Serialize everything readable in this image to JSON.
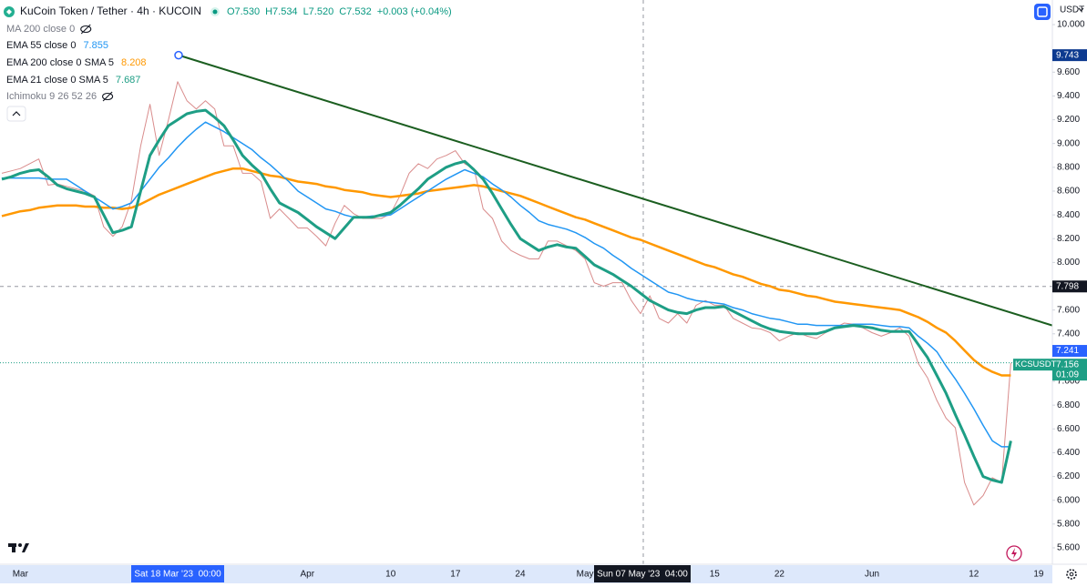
{
  "header": {
    "title": "KuCoin Token / Tether · 4h · KUCOIN",
    "ohlc": [
      "O7.530",
      "H7.534",
      "L7.520",
      "C7.532"
    ],
    "change": "+0.003 (+0.04%)"
  },
  "indicators": [
    {
      "name": "MA 200 close 0"
    },
    {
      "name": "Ichimoku 9 26 52 26"
    }
  ],
  "chart_data": {
    "type": "line",
    "currency": "USDT",
    "categories": [
      null,
      null,
      "Mar",
      null,
      null,
      null,
      null,
      null,
      null,
      null,
      null,
      null,
      null,
      null,
      null,
      null,
      null,
      null,
      null,
      null,
      null,
      null,
      null,
      null,
      null,
      null,
      null,
      null,
      null,
      null,
      null,
      null,
      null,
      "Apr",
      null,
      null,
      null,
      null,
      null,
      null,
      null,
      null,
      "10",
      null,
      null,
      null,
      null,
      null,
      null,
      "17",
      null,
      null,
      null,
      null,
      null,
      null,
      "24",
      null,
      null,
      null,
      null,
      null,
      null,
      "May",
      null,
      null,
      null,
      null,
      null,
      null,
      null,
      null,
      null,
      null,
      null,
      null,
      null,
      "15",
      null,
      null,
      null,
      null,
      null,
      null,
      "22",
      null,
      null,
      null,
      null,
      null,
      null,
      null,
      null,
      null,
      "Jun",
      null,
      null,
      null,
      null,
      null,
      null,
      null,
      null,
      null,
      null,
      "12",
      null,
      null,
      null,
      null,
      null,
      null,
      "19"
    ],
    "series": [
      {
        "name": "EMA 55 close 0",
        "color": "#2196f3",
        "legend_value": 7.855,
        "width": 1.5,
        "values": [
          8.71,
          8.71,
          8.71,
          8.71,
          8.71,
          8.7,
          8.7,
          8.7,
          8.65,
          8.6,
          8.55,
          8.5,
          8.45,
          8.47,
          8.5,
          8.6,
          8.7,
          8.8,
          8.88,
          8.97,
          9.05,
          9.12,
          9.18,
          9.14,
          9.1,
          9.05,
          9.0,
          8.95,
          8.88,
          8.82,
          8.75,
          8.68,
          8.6,
          8.55,
          8.5,
          8.45,
          8.43,
          8.4,
          8.38,
          8.38,
          8.39,
          8.39,
          8.4,
          8.45,
          8.5,
          8.55,
          8.6,
          8.65,
          8.7,
          8.74,
          8.78,
          8.75,
          8.72,
          8.66,
          8.61,
          8.55,
          8.48,
          8.42,
          8.35,
          8.32,
          8.3,
          8.28,
          8.25,
          8.21,
          8.16,
          8.12,
          8.06,
          8.01,
          7.95,
          7.9,
          7.85,
          7.8,
          7.75,
          7.73,
          7.7,
          7.68,
          7.67,
          7.66,
          7.65,
          7.62,
          7.6,
          7.57,
          7.55,
          7.53,
          7.52,
          7.5,
          7.48,
          7.48,
          7.47,
          7.47,
          7.47,
          7.47,
          7.48,
          7.48,
          7.48,
          7.47,
          7.46,
          7.46,
          7.45,
          7.38,
          7.32,
          7.25,
          7.13,
          7.02,
          6.9,
          6.77,
          6.63,
          6.5,
          6.45,
          6.45,
          null,
          null,
          null
        ]
      },
      {
        "name": "EMA 200 close 0 SMA 5",
        "color": "#ff9800",
        "legend_value": 8.208,
        "width": 2.5,
        "values": [
          8.39,
          8.41,
          8.43,
          8.44,
          8.46,
          8.47,
          8.48,
          8.48,
          8.48,
          8.47,
          8.47,
          8.46,
          8.46,
          8.45,
          8.46,
          8.49,
          8.53,
          8.57,
          8.6,
          8.63,
          8.66,
          8.69,
          8.72,
          8.75,
          8.77,
          8.79,
          8.79,
          8.77,
          8.75,
          8.73,
          8.72,
          8.7,
          8.68,
          8.67,
          8.66,
          8.64,
          8.63,
          8.61,
          8.6,
          8.59,
          8.57,
          8.56,
          8.55,
          8.56,
          8.57,
          8.58,
          8.6,
          8.61,
          8.62,
          8.63,
          8.64,
          8.65,
          8.64,
          8.62,
          8.6,
          8.58,
          8.56,
          8.53,
          8.5,
          8.47,
          8.44,
          8.41,
          8.38,
          8.36,
          8.33,
          8.3,
          8.27,
          8.24,
          8.21,
          8.19,
          8.16,
          8.13,
          8.1,
          8.07,
          8.04,
          8.01,
          7.98,
          7.96,
          7.93,
          7.9,
          7.88,
          7.85,
          7.82,
          7.8,
          7.77,
          7.76,
          7.74,
          7.72,
          7.71,
          7.69,
          7.67,
          7.66,
          7.65,
          7.64,
          7.63,
          7.62,
          7.61,
          7.6,
          7.57,
          7.54,
          7.5,
          7.45,
          7.41,
          7.34,
          7.26,
          7.18,
          7.12,
          7.08,
          7.05,
          7.05,
          null,
          null,
          null
        ]
      },
      {
        "name": "EMA 21 close 0 SMA 5",
        "color": "#1e9e85",
        "legend_value": 7.687,
        "width": 3,
        "values": [
          8.7,
          8.72,
          8.75,
          8.77,
          8.78,
          8.72,
          8.65,
          8.62,
          8.6,
          8.58,
          8.55,
          8.4,
          8.25,
          8.27,
          8.3,
          8.6,
          8.9,
          9.03,
          9.15,
          9.2,
          9.25,
          9.27,
          9.28,
          9.22,
          9.15,
          9.03,
          8.9,
          8.82,
          8.75,
          8.62,
          8.5,
          8.46,
          8.42,
          8.36,
          8.3,
          8.25,
          8.2,
          8.29,
          8.38,
          8.38,
          8.38,
          8.4,
          8.42,
          8.48,
          8.55,
          8.62,
          8.7,
          8.75,
          8.8,
          8.83,
          8.85,
          8.78,
          8.7,
          8.58,
          8.45,
          8.32,
          8.2,
          8.15,
          8.1,
          8.13,
          8.15,
          8.13,
          8.12,
          8.05,
          7.98,
          7.94,
          7.9,
          7.85,
          7.8,
          7.74,
          7.68,
          7.64,
          7.6,
          7.58,
          7.57,
          7.6,
          7.62,
          7.62,
          7.63,
          7.59,
          7.55,
          7.51,
          7.47,
          7.44,
          7.42,
          7.41,
          7.4,
          7.4,
          7.4,
          7.42,
          7.45,
          7.46,
          7.47,
          7.46,
          7.45,
          7.43,
          7.42,
          7.42,
          7.42,
          7.31,
          7.2,
          7.05,
          6.9,
          6.72,
          6.55,
          6.37,
          6.2,
          6.17,
          6.15,
          6.5,
          null,
          null,
          null
        ]
      },
      {
        "name": "KCSUSDT",
        "color": "#d98c8c",
        "width": 1,
        "values": [
          8.75,
          8.77,
          8.79,
          8.83,
          8.87,
          8.65,
          8.66,
          8.64,
          8.62,
          8.6,
          8.56,
          8.3,
          8.22,
          8.3,
          8.52,
          8.98,
          9.33,
          8.9,
          9.2,
          9.52,
          9.36,
          9.29,
          9.36,
          9.29,
          8.98,
          8.98,
          8.75,
          8.75,
          8.68,
          8.37,
          8.45,
          8.37,
          8.29,
          8.29,
          8.22,
          8.14,
          8.33,
          8.48,
          8.41,
          8.37,
          8.37,
          8.37,
          8.41,
          8.56,
          8.75,
          8.83,
          8.79,
          8.87,
          8.9,
          8.94,
          8.83,
          8.79,
          8.45,
          8.37,
          8.18,
          8.1,
          8.06,
          8.03,
          8.03,
          8.18,
          8.18,
          8.14,
          8.1,
          8.03,
          7.83,
          7.8,
          7.83,
          7.83,
          7.68,
          7.57,
          7.72,
          7.53,
          7.49,
          7.57,
          7.49,
          7.64,
          7.68,
          7.64,
          7.64,
          7.53,
          7.49,
          7.45,
          7.44,
          7.41,
          7.34,
          7.38,
          7.41,
          7.38,
          7.36,
          7.41,
          7.45,
          7.49,
          7.48,
          7.45,
          7.41,
          7.38,
          7.41,
          7.45,
          7.38,
          7.15,
          7.03,
          6.84,
          6.69,
          6.61,
          6.15,
          5.96,
          6.04,
          6.19,
          6.15,
          7.156,
          null,
          null,
          null
        ]
      }
    ],
    "ylim": [
      5.462,
      10.207
    ],
    "yticks": [
      {
        "value": 10.0,
        "label": "10.000"
      },
      {
        "value": 9.6,
        "label": "9.600"
      },
      {
        "value": 9.4,
        "label": "9.400"
      },
      {
        "value": 9.2,
        "label": "9.200"
      },
      {
        "value": 9.0,
        "label": "9.000"
      },
      {
        "value": 8.8,
        "label": "8.800"
      },
      {
        "value": 8.6,
        "label": "8.600"
      },
      {
        "value": 8.4,
        "label": "8.400"
      },
      {
        "value": 8.2,
        "label": "8.200"
      },
      {
        "value": 8.0,
        "label": "8.000"
      },
      {
        "value": 7.6,
        "label": "7.600"
      },
      {
        "value": 7.4,
        "label": "7.400"
      },
      {
        "value": 7.0,
        "label": "7.000"
      },
      {
        "value": 6.8,
        "label": "6.800"
      },
      {
        "value": 6.6,
        "label": "6.600"
      },
      {
        "value": 6.4,
        "label": "6.400"
      },
      {
        "value": 6.2,
        "label": "6.200"
      },
      {
        "value": 6.0,
        "label": "6.000"
      },
      {
        "value": 5.8,
        "label": "5.800"
      },
      {
        "value": 5.6,
        "label": "5.600"
      }
    ],
    "grid": false,
    "trend_line": {
      "values": [
        9.743,
        7.47
      ],
      "color": "#1b5e20"
    },
    "flags": [
      {
        "value": 9.743,
        "color": "#0d3a8f"
      },
      {
        "value": 7.798,
        "color": "#131722"
      },
      {
        "value": 7.241,
        "color": "#2962ff"
      },
      {
        "value": 7.156,
        "color": "#1e9e85",
        "countdown": "01:09"
      }
    ],
    "crosshair": {
      "value": 7.798,
      "x_label": "Sun 07 May '23  04:00"
    },
    "x_flag": "Sat 18 Mar '23  00:00"
  }
}
